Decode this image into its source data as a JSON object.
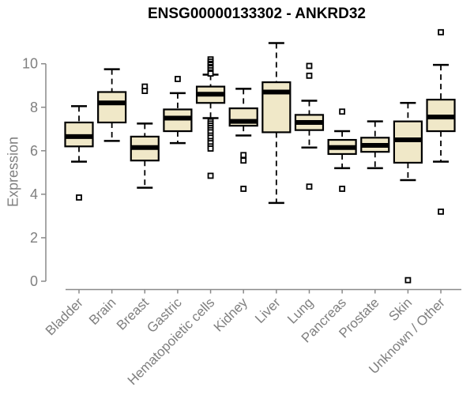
{
  "header": {
    "title": "ENSG00000133302 - ANKRD32"
  },
  "chart_data": {
    "type": "boxplot",
    "title": "ENSG00000133302 - ANKRD32",
    "xlabel": "",
    "ylabel": "Expression",
    "ylim": [
      0,
      10
    ],
    "yticks": [
      0,
      2,
      4,
      6,
      8,
      10
    ],
    "grid": false,
    "legend": false,
    "categories": [
      "Bladder",
      "Brain",
      "Breast",
      "Gastric",
      "Hematopoietic cells",
      "Kidney",
      "Liver",
      "Lung",
      "Pancreas",
      "Prostate",
      "Skin",
      "Unknown / Other"
    ],
    "boxes": [
      {
        "label": "Bladder",
        "whislo": 5.5,
        "q1": 6.2,
        "med": 6.65,
        "q3": 7.3,
        "whishi": 8.05,
        "outliers": [
          3.85
        ]
      },
      {
        "label": "Brain",
        "whislo": 6.45,
        "q1": 7.3,
        "med": 8.2,
        "q3": 8.7,
        "whishi": 9.75,
        "outliers": []
      },
      {
        "label": "Breast",
        "whislo": 4.3,
        "q1": 5.55,
        "med": 6.15,
        "q3": 6.65,
        "whishi": 7.25,
        "outliers": [
          8.95,
          8.75
        ]
      },
      {
        "label": "Gastric",
        "whislo": 6.35,
        "q1": 6.9,
        "med": 7.5,
        "q3": 7.9,
        "whishi": 8.65,
        "outliers": [
          9.3
        ]
      },
      {
        "label": "Hematopoietic cells",
        "whislo": 7.5,
        "q1": 8.2,
        "med": 8.6,
        "q3": 8.95,
        "whishi": 9.5,
        "outliers": [
          10.2,
          10.1,
          10.0,
          9.95,
          9.85,
          9.8,
          9.7,
          9.6,
          9.55,
          7.35,
          7.25,
          7.15,
          7.05,
          6.95,
          6.85,
          6.7,
          6.6,
          6.45,
          6.35,
          6.2,
          6.1,
          4.85
        ]
      },
      {
        "label": "Kidney",
        "whislo": 6.7,
        "q1": 7.15,
        "med": 7.35,
        "q3": 7.95,
        "whishi": 8.85,
        "outliers": [
          5.8,
          5.55,
          4.25
        ]
      },
      {
        "label": "Liver",
        "whislo": 3.6,
        "q1": 6.85,
        "med": 8.7,
        "q3": 9.15,
        "whishi": 10.95,
        "outliers": []
      },
      {
        "label": "Lung",
        "whislo": 6.15,
        "q1": 6.95,
        "med": 7.3,
        "q3": 7.65,
        "whishi": 8.3,
        "outliers": [
          9.9,
          9.45,
          4.35
        ]
      },
      {
        "label": "Pancreas",
        "whislo": 5.2,
        "q1": 5.85,
        "med": 6.15,
        "q3": 6.5,
        "whishi": 6.9,
        "outliers": [
          7.8,
          4.25
        ]
      },
      {
        "label": "Prostate",
        "whislo": 5.2,
        "q1": 5.95,
        "med": 6.25,
        "q3": 6.6,
        "whishi": 7.35,
        "outliers": []
      },
      {
        "label": "Skin",
        "whislo": 4.65,
        "q1": 5.45,
        "med": 6.5,
        "q3": 7.35,
        "whishi": 8.2,
        "outliers": [
          0.05
        ]
      },
      {
        "label": "Unknown / Other",
        "whislo": 5.5,
        "q1": 6.9,
        "med": 7.55,
        "q3": 8.35,
        "whishi": 9.95,
        "outliers": [
          11.45,
          3.2
        ]
      }
    ],
    "colors": {
      "box_fill": "#F0E8C8",
      "box_stroke": "#000000",
      "median": "#000000",
      "whisker": "#000000",
      "outlier_fill": "#ffffff",
      "axis": "#8A8A8A",
      "axis_text": "#7F7F7F",
      "title": "#000000"
    }
  }
}
